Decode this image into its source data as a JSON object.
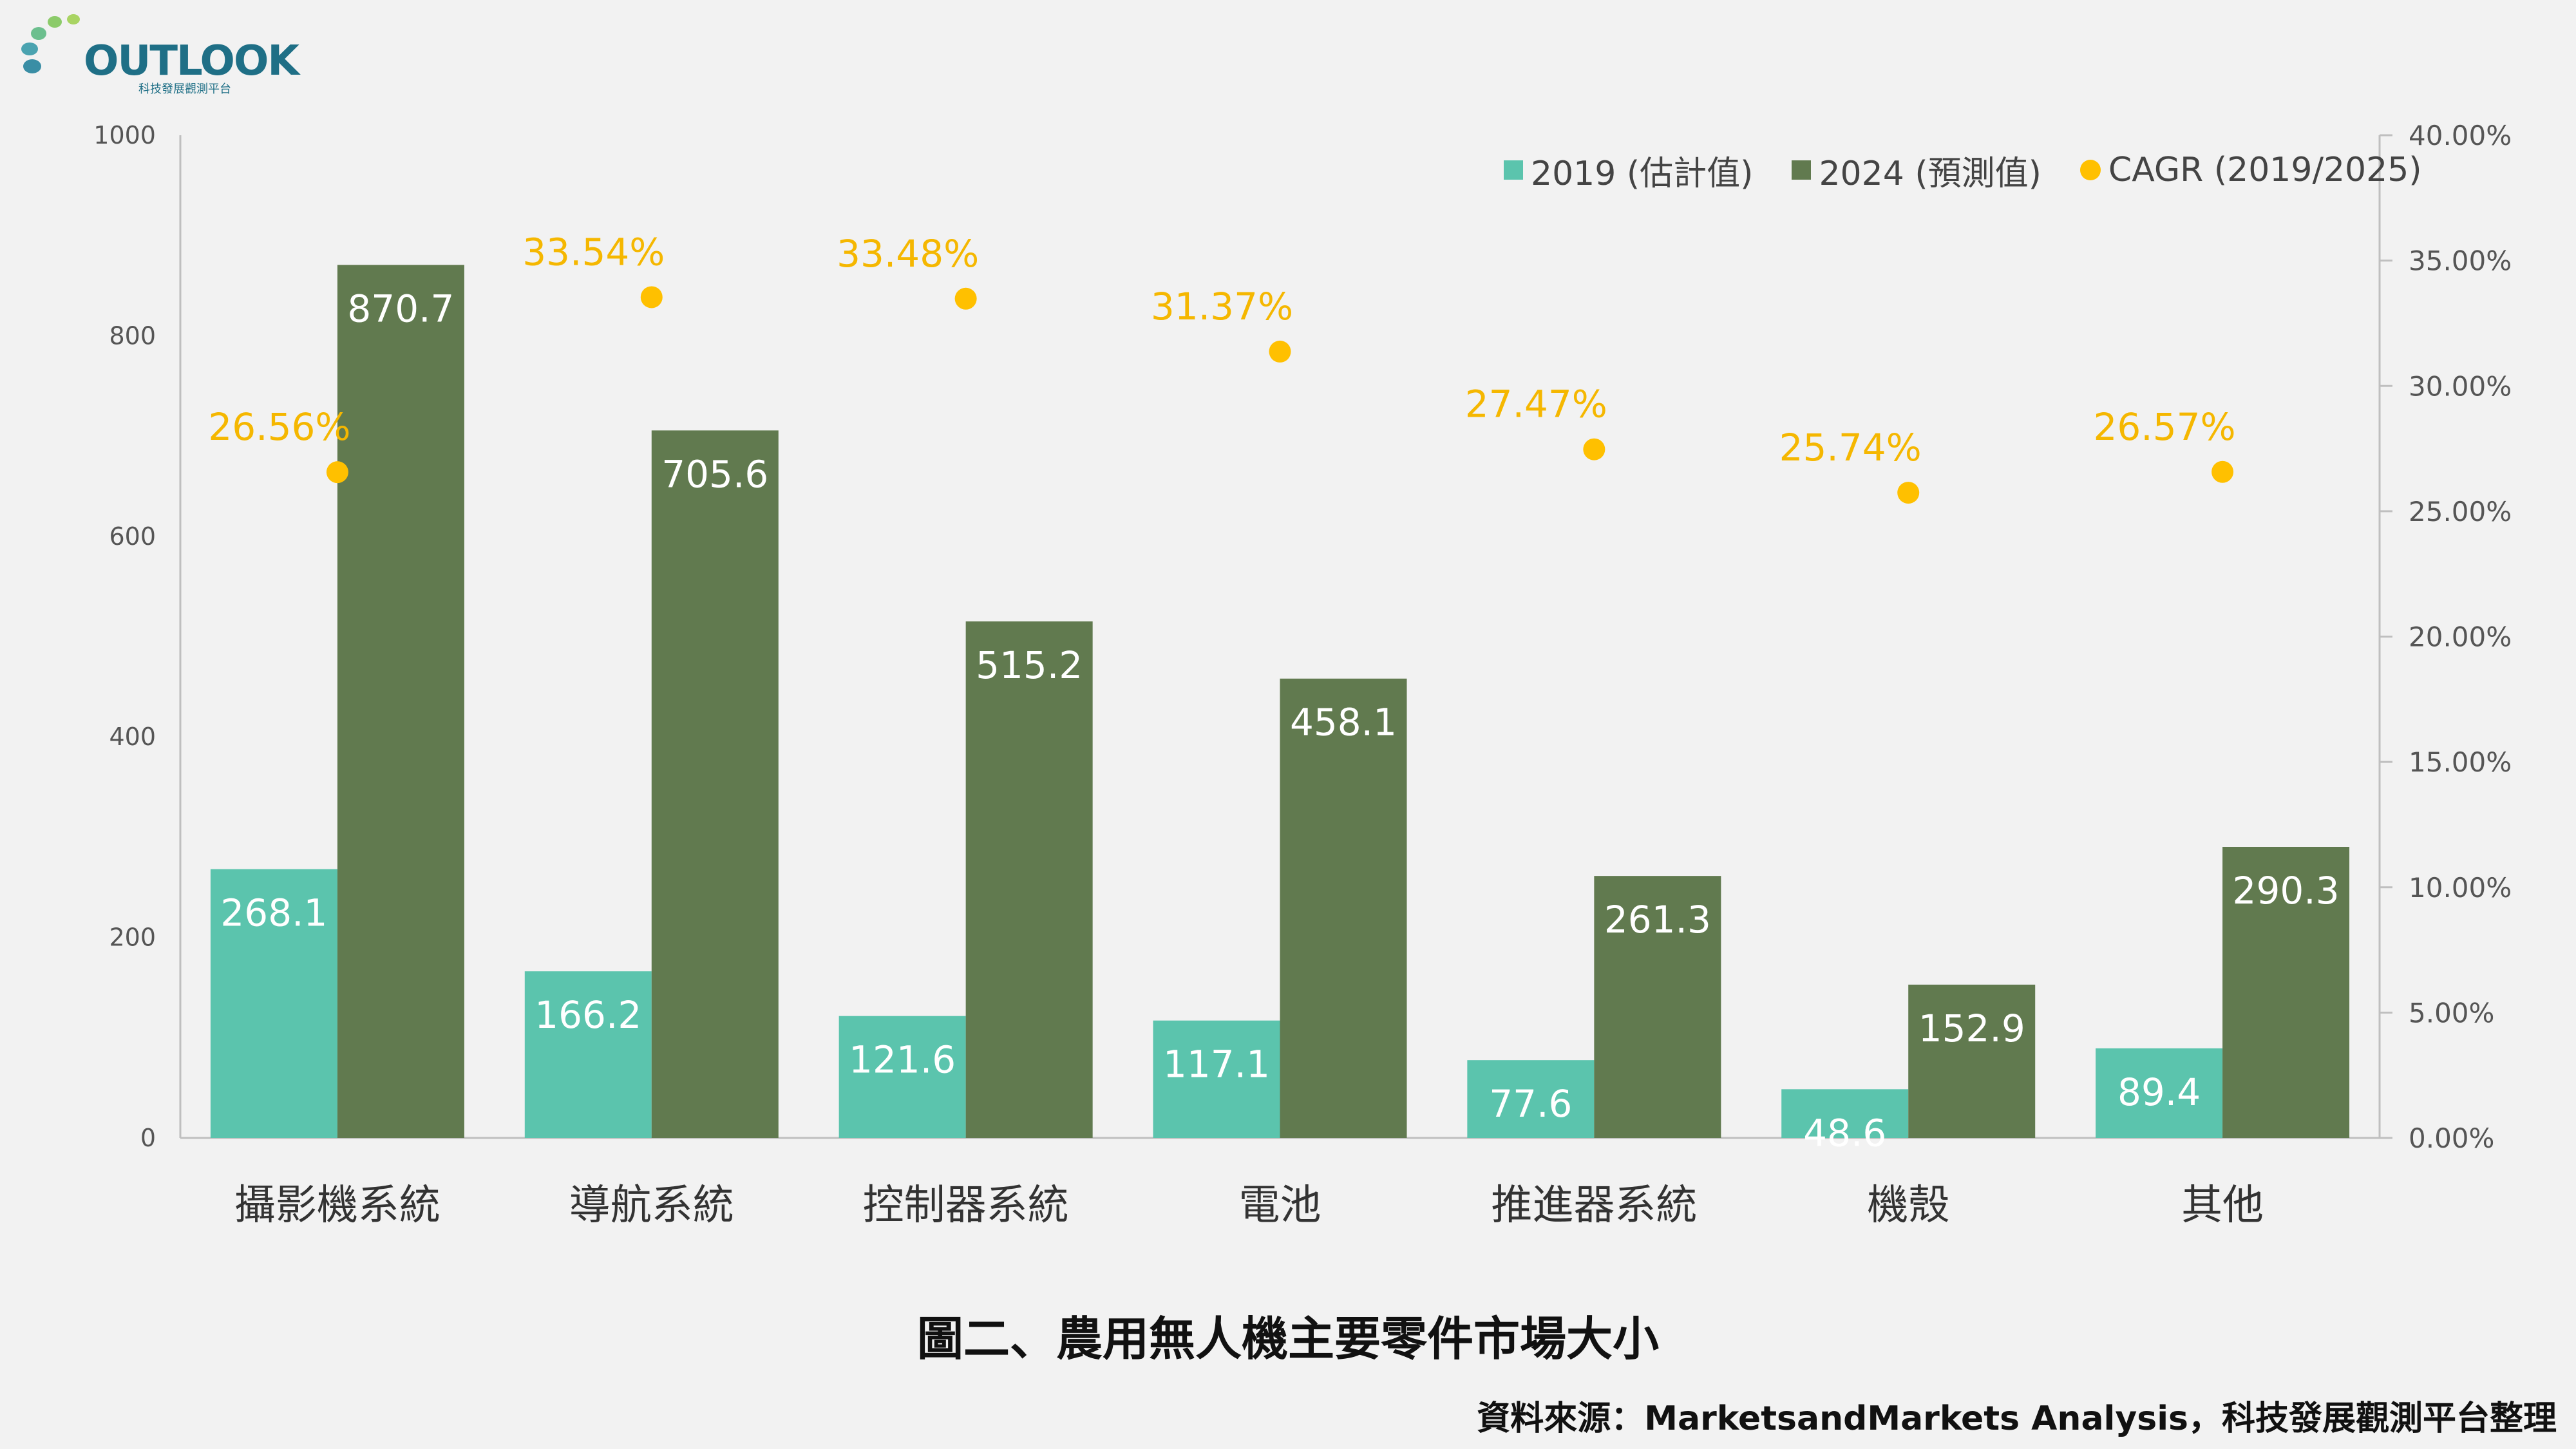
{
  "logo": {
    "text": "OUTLOOK",
    "subtitle": "科技發展觀測平台"
  },
  "caption": "圖二、農用無人機主要零件市場大小",
  "source": "資料來源：MarketsandMarkets Analysis，科技發展觀測平台整理",
  "colors": {
    "series2019": "#5bc4ad",
    "series2024": "#617a4f",
    "cagr": "#ffc000",
    "cagrLabel": "#f5b700",
    "axis": "#bfbfbf"
  },
  "legend": {
    "s2019": "2019 (估計值)",
    "s2024": "2024 (預測值)",
    "cagr": "CAGR (2019/2025)"
  },
  "chart_data": {
    "type": "bar",
    "categories": [
      "攝影機系統",
      "導航系統",
      "控制器系統",
      "電池",
      "推進器系統",
      "機殼",
      "其他"
    ],
    "series": [
      {
        "name": "2019 (估計值)",
        "values": [
          268.1,
          166.2,
          121.6,
          117.1,
          77.6,
          48.6,
          89.4
        ],
        "labels": [
          "268.1",
          "166.2",
          "121.6",
          "117.1",
          "77.6",
          "48.6",
          "89.4"
        ]
      },
      {
        "name": "2024 (預測值)",
        "values": [
          870.7,
          705.6,
          515.2,
          458.1,
          261.3,
          152.9,
          290.3
        ],
        "labels": [
          "870.7",
          "705.6",
          "515.2",
          "458.1",
          "261.3",
          "152.9",
          "290.3"
        ]
      },
      {
        "name": "CAGR (2019/2025)",
        "type": "scatter",
        "axis": "right",
        "values": [
          26.56,
          33.54,
          33.48,
          31.37,
          27.47,
          25.74,
          26.57
        ],
        "labels": [
          "26.56%",
          "33.54%",
          "33.48%",
          "31.37%",
          "27.47%",
          "25.74%",
          "26.57%"
        ]
      }
    ],
    "ylim": [
      0,
      1000
    ],
    "yticks": [
      "0",
      "200",
      "400",
      "600",
      "800",
      "1000"
    ],
    "y2lim": [
      0,
      40
    ],
    "y2ticks": [
      "0.00%",
      "5.00%",
      "10.00%",
      "15.00%",
      "20.00%",
      "25.00%",
      "30.00%",
      "35.00%",
      "40.00%"
    ],
    "legend_position": "top-right",
    "grid": false
  }
}
